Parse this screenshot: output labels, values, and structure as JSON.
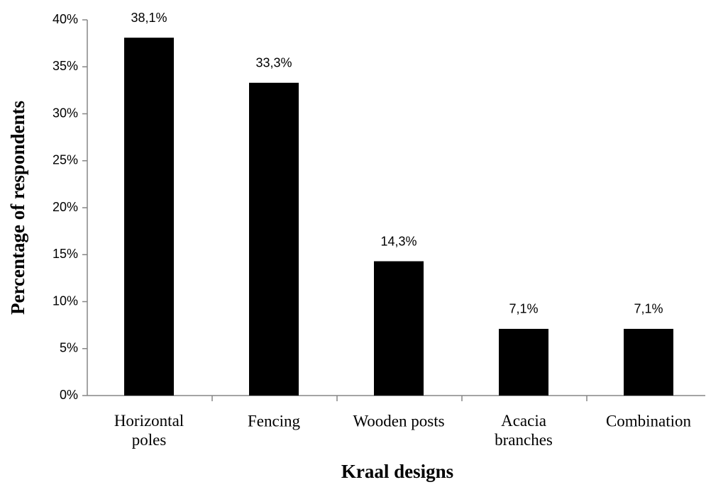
{
  "chart_data": {
    "type": "bar",
    "xlabel": "Kraal designs",
    "ylabel": "Percentage of respondents",
    "categories": [
      "Horizontal\npoles",
      "Fencing",
      "Wooden posts",
      "Acacia\nbranches",
      "Combination"
    ],
    "values": [
      38.1,
      33.3,
      14.3,
      7.1,
      7.1
    ],
    "value_labels": [
      "38,1%",
      "33,3%",
      "14,3%",
      "7,1%",
      "7,1%"
    ],
    "color": "#000000",
    "ylim": [
      0,
      40
    ],
    "yticks": [
      {
        "value": 0,
        "label": "0%"
      },
      {
        "value": 5,
        "label": "5%"
      },
      {
        "value": 10,
        "label": "10%"
      },
      {
        "value": 15,
        "label": "15%"
      },
      {
        "value": 20,
        "label": "20%"
      },
      {
        "value": 25,
        "label": "25%"
      },
      {
        "value": 30,
        "label": "30%"
      },
      {
        "value": 35,
        "label": "35%"
      },
      {
        "value": 40,
        "label": "40%"
      }
    ],
    "grid": false
  }
}
